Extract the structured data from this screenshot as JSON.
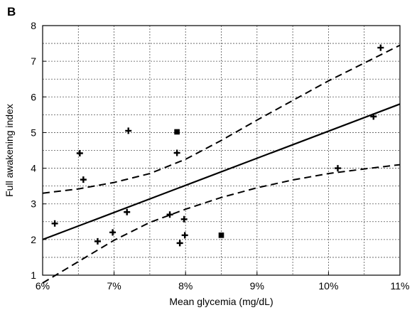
{
  "chart_data": {
    "type": "scatter",
    "panel_label": "B",
    "xlabel": "Mean glycemia (mg/dL)",
    "ylabel": "Full awakening index",
    "xlim": [
      6,
      11
    ],
    "ylim": [
      1,
      8
    ],
    "x_ticks": [
      6,
      7,
      8,
      9,
      10,
      11
    ],
    "x_tick_labels": [
      "6%",
      "7%",
      "8%",
      "9%",
      "10%",
      "11%"
    ],
    "y_ticks": [
      1,
      2,
      3,
      4,
      5,
      6,
      7,
      8
    ],
    "y_tick_labels": [
      "1",
      "2",
      "3",
      "4",
      "5",
      "6",
      "7",
      "8"
    ],
    "grid": true,
    "grid_style": "dotted",
    "points_plus": [
      {
        "x": 6.17,
        "y": 2.45
      },
      {
        "x": 6.52,
        "y": 4.42
      },
      {
        "x": 6.57,
        "y": 3.68
      },
      {
        "x": 6.77,
        "y": 1.95
      },
      {
        "x": 6.98,
        "y": 2.2
      },
      {
        "x": 7.18,
        "y": 2.77
      },
      {
        "x": 7.2,
        "y": 5.05
      },
      {
        "x": 7.78,
        "y": 2.7
      },
      {
        "x": 7.88,
        "y": 4.43
      },
      {
        "x": 7.92,
        "y": 1.9
      },
      {
        "x": 7.98,
        "y": 2.57
      },
      {
        "x": 7.99,
        "y": 2.12
      },
      {
        "x": 10.13,
        "y": 4.0
      },
      {
        "x": 10.63,
        "y": 5.45
      },
      {
        "x": 10.73,
        "y": 7.38
      }
    ],
    "points_square": [
      {
        "x": 7.88,
        "y": 5.02
      },
      {
        "x": 8.5,
        "y": 2.12
      }
    ],
    "regression_line": {
      "x": [
        6,
        11
      ],
      "y": [
        2.0,
        5.8
      ]
    },
    "ci_upper": {
      "x": [
        6.0,
        6.5,
        7.0,
        7.5,
        8.0,
        8.5,
        9.0,
        9.5,
        10.0,
        10.5,
        11.0
      ],
      "y": [
        3.3,
        3.42,
        3.6,
        3.85,
        4.25,
        4.78,
        5.35,
        5.9,
        6.45,
        6.95,
        7.45
      ]
    },
    "ci_lower": {
      "x": [
        6.0,
        6.5,
        7.0,
        7.5,
        8.0,
        8.5,
        9.0,
        9.5,
        10.0,
        10.5,
        11.0
      ],
      "y": [
        0.78,
        1.38,
        1.98,
        2.48,
        2.85,
        3.18,
        3.45,
        3.67,
        3.85,
        3.98,
        4.1
      ]
    },
    "colors": {
      "ink": "#000000",
      "grid": "#555555",
      "background": "#ffffff"
    }
  }
}
